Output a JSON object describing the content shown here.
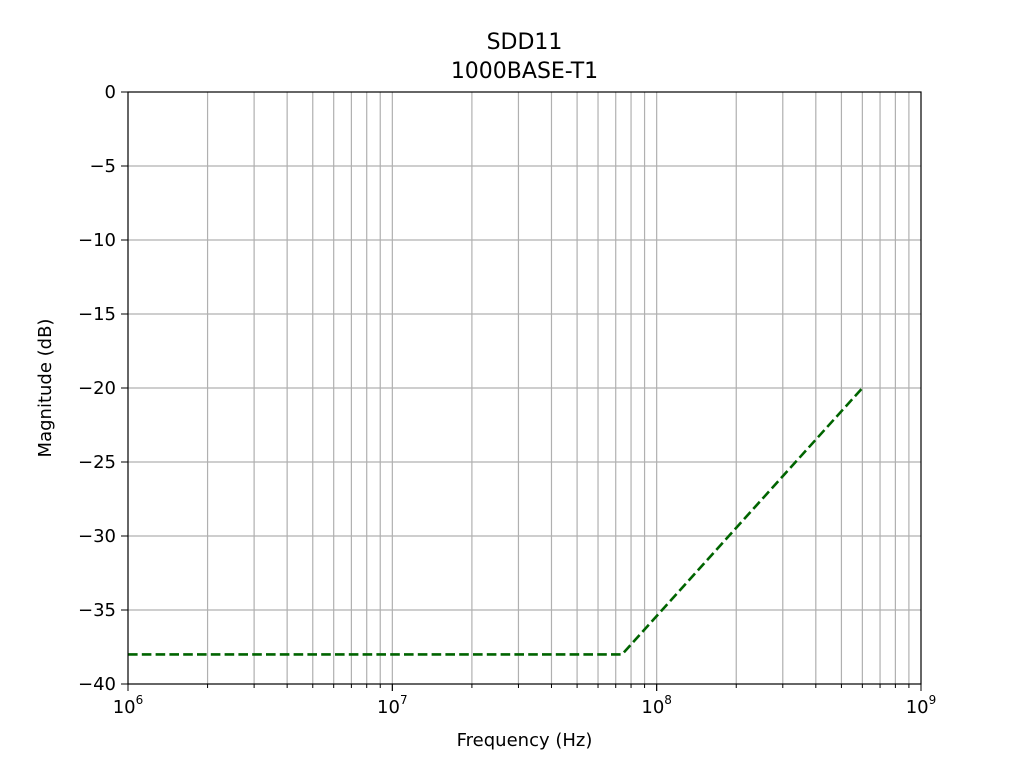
{
  "chart_data": {
    "type": "line",
    "title": "SDD11",
    "subtitle": "1000BASE-T1",
    "xlabel": "Frequency (Hz)",
    "ylabel": "Magnitude (dB)",
    "xscale": "log",
    "xlim": [
      1000000,
      1000000000
    ],
    "ylim": [
      -40,
      0
    ],
    "grid": true,
    "grid_color": "#b0b0b0",
    "x_major_ticks": [
      {
        "value": 1000000,
        "base": "10",
        "exp": "6"
      },
      {
        "value": 10000000,
        "base": "10",
        "exp": "7"
      },
      {
        "value": 100000000,
        "base": "10",
        "exp": "8"
      },
      {
        "value": 1000000000,
        "base": "10",
        "exp": "9"
      }
    ],
    "y_ticks": [
      {
        "value": 0,
        "label": "0"
      },
      {
        "value": -5,
        "label": "−5"
      },
      {
        "value": -10,
        "label": "−10"
      },
      {
        "value": -15,
        "label": "−15"
      },
      {
        "value": -20,
        "label": "−20"
      },
      {
        "value": -25,
        "label": "−25"
      },
      {
        "value": -30,
        "label": "−30"
      },
      {
        "value": -35,
        "label": "−35"
      },
      {
        "value": -40,
        "label": "−40"
      }
    ],
    "series": [
      {
        "color": "#006400",
        "linestyle": "dashed",
        "x": [
          1000000,
          74000000,
          600000000
        ],
        "y": [
          -38,
          -38,
          -20
        ]
      }
    ]
  }
}
